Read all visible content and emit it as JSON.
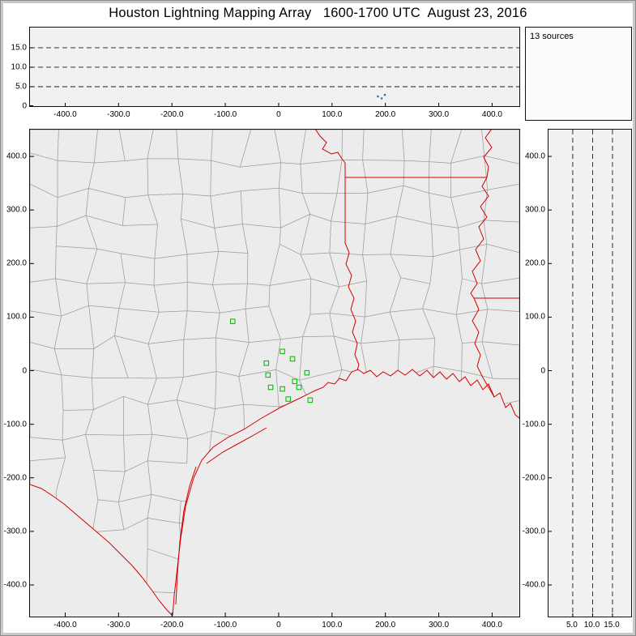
{
  "title": "Houston Lightning Mapping Array   1600-1700 UTC  August 23, 2016",
  "sources_label": "13 sources",
  "colors": {
    "frame_gray": "#c9c9c9",
    "panel_bg": "#f1f1f1",
    "map_bg": "#ececec",
    "border_red": "#d40000",
    "county_gray": "#9b9b9b",
    "station_green": "#00c400",
    "grid_black": "#1a1a1a",
    "source_dot": "#3b6e8f"
  },
  "chart_data": [
    {
      "id": "altitude_vs_ew",
      "type": "scatter",
      "description": "Altitude (km) vs east-west distance (km), dashed height gridlines",
      "xlim": [
        -466,
        451
      ],
      "ylim": [
        0,
        20.2
      ],
      "x_ticks": [
        [
          -400,
          "-400.0"
        ],
        [
          -300,
          "-300.0"
        ],
        [
          -200,
          "-200.0"
        ],
        [
          -100,
          "-100.0"
        ],
        [
          0,
          "0"
        ],
        [
          100,
          "100.0"
        ],
        [
          200,
          "200.0"
        ],
        [
          300,
          "300.0"
        ],
        [
          400,
          "400.0"
        ]
      ],
      "y_ticks": [
        [
          0,
          "0"
        ],
        [
          5,
          "5.0"
        ],
        [
          10,
          "10.0"
        ],
        [
          15,
          "15.0"
        ]
      ],
      "grid_y": [
        5,
        10,
        15
      ],
      "points": [
        [
          186,
          2.5
        ],
        [
          193,
          2.0
        ],
        [
          199,
          2.9
        ]
      ]
    },
    {
      "id": "map",
      "type": "scatter",
      "description": "Plan-view map, km east-west vs km north-south centered on Houston LMA; green squares are network stations",
      "xlim": [
        -466,
        451
      ],
      "ylim": [
        -459,
        450
      ],
      "x_ticks": [
        [
          -400,
          "-400.0"
        ],
        [
          -300,
          "-300.0"
        ],
        [
          -200,
          "-200.0"
        ],
        [
          -100,
          "-100.0"
        ],
        [
          0,
          "0"
        ],
        [
          100,
          "100.0"
        ],
        [
          200,
          "200.0"
        ],
        [
          300,
          "300.0"
        ],
        [
          400,
          "400.0"
        ]
      ],
      "y_ticks": [
        [
          400,
          "400.0"
        ],
        [
          300,
          "300.0"
        ],
        [
          200,
          "200.0"
        ],
        [
          100,
          "100.0"
        ],
        [
          0,
          "0"
        ],
        [
          -100,
          "-100.0"
        ],
        [
          -200,
          "-200.0"
        ],
        [
          -300,
          "-300.0"
        ],
        [
          -400,
          "-400.0"
        ]
      ],
      "stations": [
        [
          -86,
          92
        ],
        [
          7,
          36
        ],
        [
          26,
          22
        ],
        [
          -23,
          14
        ],
        [
          -20,
          -8
        ],
        [
          53,
          -4
        ],
        [
          30,
          -20
        ],
        [
          -15,
          -31
        ],
        [
          7,
          -34
        ],
        [
          38,
          -31
        ],
        [
          18,
          -53
        ],
        [
          59,
          -55
        ]
      ]
    },
    {
      "id": "altitude_vs_ns",
      "type": "scatter",
      "description": "North-south distance (km) vs altitude (km), dashed altitude gridlines",
      "xlim": [
        -1.1,
        19.7
      ],
      "ylim": [
        -459,
        450
      ],
      "x_ticks": [
        [
          5,
          "5.0"
        ],
        [
          10,
          "10.0"
        ],
        [
          15,
          "15.0"
        ]
      ],
      "grid_x": [
        5,
        10,
        15
      ],
      "y_ticks": [
        [
          400,
          "400.0"
        ],
        [
          300,
          "300.0"
        ],
        [
          200,
          "200.0"
        ],
        [
          100,
          "100.0"
        ],
        [
          0,
          "0"
        ],
        [
          -100,
          "-100.0"
        ],
        [
          -200,
          "-200.0"
        ],
        [
          -300,
          "-300.0"
        ],
        [
          -400,
          "-400.0"
        ]
      ]
    }
  ]
}
